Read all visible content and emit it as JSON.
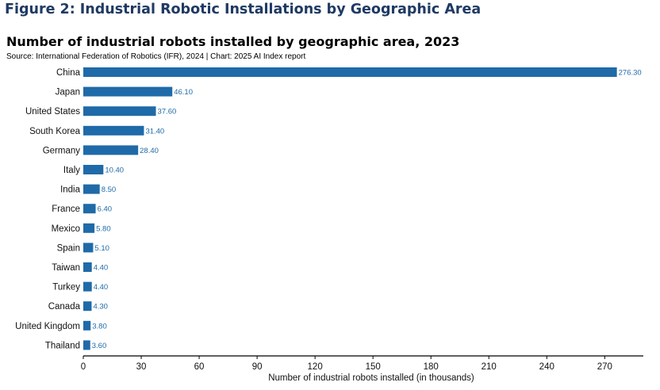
{
  "figure_title": "Figure 2: Industrial Robotic Installations by Geographic Area",
  "chart_data": {
    "type": "bar",
    "orientation": "horizontal",
    "title": "Number of industrial robots installed by geographic area, 2023",
    "subtitle": "Source: International Federation of Robotics (IFR), 2024 | Chart: 2025 AI Index report",
    "xlabel": "Number of industrial robots installed (in thousands)",
    "ylabel": "",
    "categories": [
      "China",
      "Japan",
      "United States",
      "South Korea",
      "Germany",
      "Italy",
      "India",
      "France",
      "Mexico",
      "Spain",
      "Taiwan",
      "Turkey",
      "Canada",
      "United Kingdom",
      "Thailand"
    ],
    "values": [
      276.3,
      46.1,
      37.6,
      31.4,
      28.4,
      10.4,
      8.5,
      6.4,
      5.8,
      5.1,
      4.4,
      4.4,
      4.3,
      3.8,
      3.6
    ],
    "value_labels": [
      "276.30",
      "46.10",
      "37.60",
      "31.40",
      "28.40",
      "10.40",
      "8.50",
      "6.40",
      "5.80",
      "5.10",
      "4.40",
      "4.40",
      "4.30",
      "3.80",
      "3.60"
    ],
    "xlim": [
      0,
      290
    ],
    "xticks": [
      0,
      30,
      60,
      90,
      120,
      150,
      180,
      210,
      240,
      270
    ],
    "grid": false,
    "bar_color": "#1f6aa8",
    "label_color": "#1f6aa8"
  }
}
